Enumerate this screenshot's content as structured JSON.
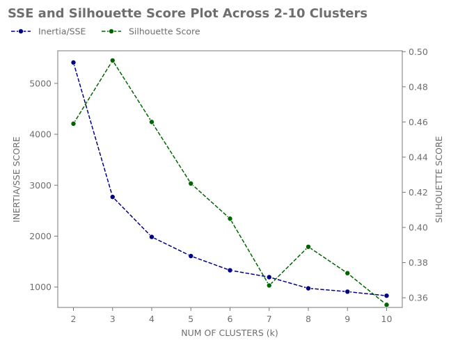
{
  "chart_data": {
    "type": "line",
    "title": "SSE and Silhouette Score Plot Across 2-10 Clusters",
    "xlabel": "NUM OF CLUSTERS (k)",
    "ylabel": "INERTIA/SSE SCORE",
    "y2label": "SILHOUETTE SCORE",
    "x": [
      2,
      3,
      4,
      5,
      6,
      7,
      8,
      9,
      10
    ],
    "xticks": [
      "2",
      "3",
      "4",
      "5",
      "6",
      "7",
      "8",
      "9",
      "10"
    ],
    "ylim": [
      600,
      5640
    ],
    "yticks": [
      1000,
      2000,
      3000,
      4000,
      5000
    ],
    "ytick_labels": [
      "1000",
      "2000",
      "3000",
      "4000",
      "5000"
    ],
    "y2lim": [
      0.3545,
      0.5005
    ],
    "y2ticks": [
      0.36,
      0.38,
      0.4,
      0.42,
      0.44,
      0.46,
      0.48,
      0.5
    ],
    "y2tick_labels": [
      "0.36",
      "0.38",
      "0.40",
      "0.42",
      "0.44",
      "0.46",
      "0.48",
      "0.50"
    ],
    "legend_position": "top-left, above plot",
    "series": [
      {
        "name": "Inertia/SSE",
        "axis": "left",
        "color": "#000080",
        "style": "dashed",
        "marker": "circle",
        "values": [
          5410,
          2770,
          1985,
          1610,
          1330,
          1195,
          975,
          910,
          830
        ]
      },
      {
        "name": "Silhouette Score",
        "axis": "right",
        "color": "#006400",
        "style": "dashed",
        "marker": "circle",
        "values": [
          0.459,
          0.495,
          0.46,
          0.425,
          0.405,
          0.367,
          0.389,
          0.374,
          0.356
        ]
      }
    ]
  }
}
